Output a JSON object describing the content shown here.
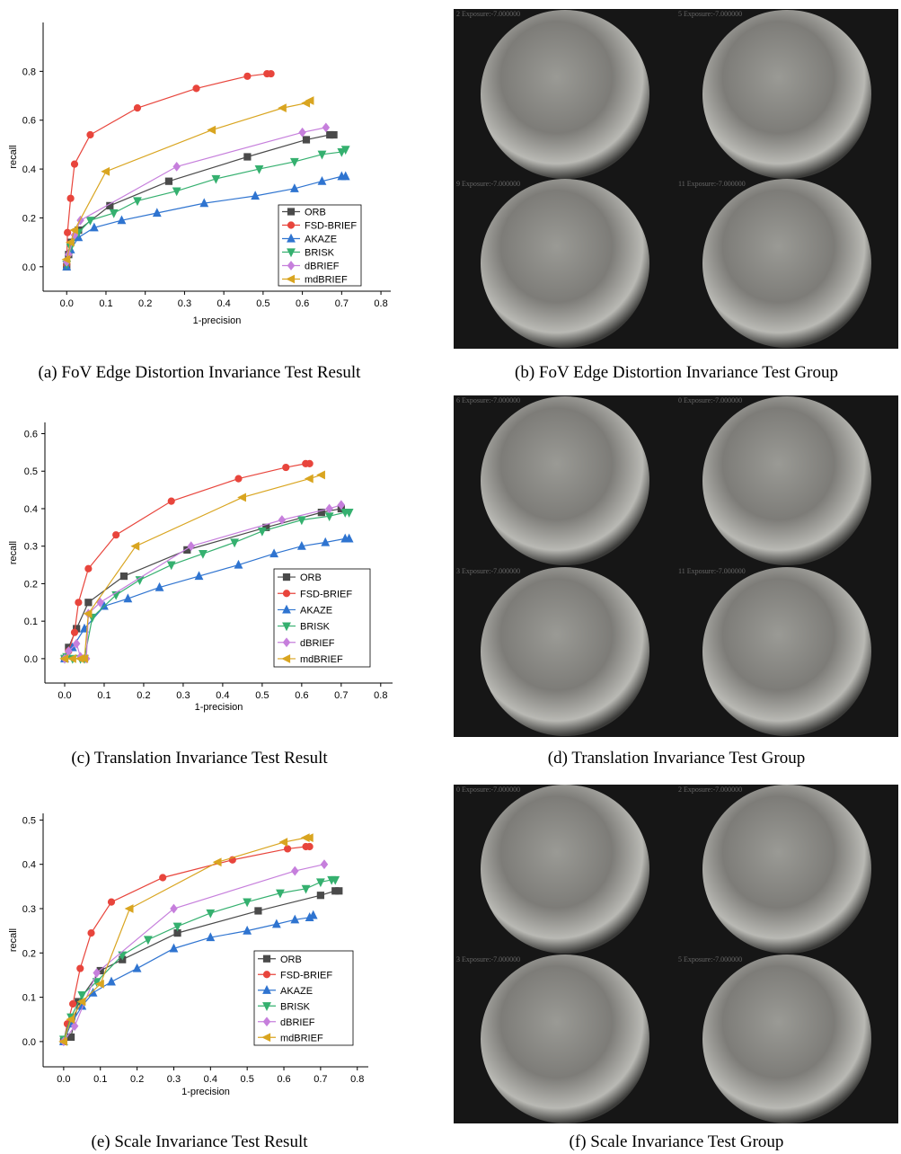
{
  "chart_data": [
    {
      "type": "line",
      "caption": "(a) FoV Edge Distortion Invariance Test Result",
      "xlabel": "1-precision",
      "ylabel": "recall",
      "xlim": [
        -0.06,
        0.825
      ],
      "ylim": [
        -0.1,
        1.0
      ],
      "xticks": [
        {
          "value": 0,
          "label": "0.0"
        },
        0.1,
        0.2,
        0.3,
        0.4,
        0.5,
        0.6,
        0.7,
        0.8
      ],
      "yticks": [
        {
          "value": 0,
          "label": "0.0"
        },
        0.2,
        0.4,
        0.6,
        0.8
      ],
      "series": [
        {
          "name": "ORB",
          "color": "#4a4a4a",
          "marker": "square",
          "x": [
            0,
            0.005,
            0.01,
            0.03,
            0.11,
            0.26,
            0.46,
            0.61,
            0.67,
            0.68
          ],
          "values": [
            0,
            0.05,
            0.1,
            0.15,
            0.25,
            0.35,
            0.45,
            0.52,
            0.54,
            0.54
          ]
        },
        {
          "name": "FSD-BRIEF",
          "color": "#e8453c",
          "marker": "circle",
          "x": [
            0,
            0.002,
            0.01,
            0.02,
            0.06,
            0.18,
            0.33,
            0.46,
            0.51,
            0.52
          ],
          "values": [
            0.01,
            0.14,
            0.28,
            0.42,
            0.54,
            0.65,
            0.73,
            0.78,
            0.79,
            0.79
          ]
        },
        {
          "name": "AKAZE",
          "color": "#2f74d0",
          "marker": "tri-up",
          "x": [
            0,
            0.01,
            0.03,
            0.07,
            0.14,
            0.23,
            0.35,
            0.48,
            0.58,
            0.65,
            0.7,
            0.71
          ],
          "values": [
            0,
            0.07,
            0.12,
            0.16,
            0.19,
            0.22,
            0.26,
            0.29,
            0.32,
            0.35,
            0.37,
            0.37
          ]
        },
        {
          "name": "BRISK",
          "color": "#35b06f",
          "marker": "tri-down",
          "x": [
            0,
            0.01,
            0.03,
            0.06,
            0.12,
            0.18,
            0.28,
            0.38,
            0.49,
            0.58,
            0.65,
            0.7,
            0.71
          ],
          "values": [
            0.01,
            0.08,
            0.14,
            0.19,
            0.22,
            0.27,
            0.31,
            0.36,
            0.4,
            0.43,
            0.46,
            0.47,
            0.48
          ]
        },
        {
          "name": "dBRIEF",
          "color": "#c67fdc",
          "marker": "diamond",
          "x": [
            0,
            0.005,
            0.02,
            0.035,
            0.28,
            0.6,
            0.66
          ],
          "values": [
            0.02,
            0.05,
            0.13,
            0.19,
            0.41,
            0.55,
            0.57
          ]
        },
        {
          "name": "mdBRIEF",
          "color": "#d9a520",
          "marker": "tri-left",
          "x": [
            0,
            0.01,
            0.02,
            0.1,
            0.37,
            0.55,
            0.61,
            0.62
          ],
          "values": [
            0.03,
            0.1,
            0.15,
            0.39,
            0.56,
            0.65,
            0.67,
            0.68
          ]
        }
      ]
    },
    {
      "type": "line",
      "caption": "(c) Translation Invariance Test Result",
      "xlabel": "1-precision",
      "ylabel": "recall",
      "xlim": [
        -0.05,
        0.83
      ],
      "ylim": [
        -0.065,
        0.63
      ],
      "xticks": [
        {
          "value": 0,
          "label": "0.0"
        },
        0.1,
        0.2,
        0.3,
        0.4,
        0.5,
        0.6,
        0.7,
        0.8
      ],
      "yticks": [
        {
          "value": 0,
          "label": "0.0"
        },
        0.1,
        0.2,
        0.3,
        0.4,
        0.5,
        0.6
      ],
      "series": [
        {
          "name": "ORB",
          "color": "#4a4a4a",
          "marker": "square",
          "x": [
            0,
            0.01,
            0.03,
            0.06,
            0.15,
            0.31,
            0.51,
            0.65,
            0.7
          ],
          "values": [
            0,
            0.03,
            0.08,
            0.15,
            0.22,
            0.29,
            0.35,
            0.39,
            0.4
          ]
        },
        {
          "name": "FSD-BRIEF",
          "color": "#e8453c",
          "marker": "circle",
          "x": [
            0,
            0.01,
            0.025,
            0.035,
            0.06,
            0.13,
            0.27,
            0.44,
            0.56,
            0.61,
            0.62
          ],
          "values": [
            0,
            0.02,
            0.07,
            0.15,
            0.24,
            0.33,
            0.42,
            0.48,
            0.51,
            0.52,
            0.52
          ]
        },
        {
          "name": "AKAZE",
          "color": "#2f74d0",
          "marker": "tri-up",
          "x": [
            0,
            0.02,
            0.05,
            0.1,
            0.16,
            0.24,
            0.34,
            0.44,
            0.53,
            0.6,
            0.66,
            0.71,
            0.72
          ],
          "values": [
            0,
            0.03,
            0.08,
            0.14,
            0.16,
            0.19,
            0.22,
            0.25,
            0.28,
            0.3,
            0.31,
            0.32,
            0.32
          ]
        },
        {
          "name": "BRISK",
          "color": "#35b06f",
          "marker": "tri-down",
          "x": [
            0,
            0.005,
            0.02,
            0.04,
            0.05,
            0.07,
            0.13,
            0.19,
            0.27,
            0.35,
            0.43,
            0.5,
            0.6,
            0.67,
            0.71,
            0.72
          ],
          "values": [
            0,
            0.005,
            0,
            0,
            0,
            0.11,
            0.17,
            0.21,
            0.25,
            0.28,
            0.31,
            0.34,
            0.37,
            0.38,
            0.39,
            0.39
          ]
        },
        {
          "name": "dBRIEF",
          "color": "#c67fdc",
          "marker": "diamond",
          "x": [
            0,
            0.01,
            0.03,
            0.04,
            0.055,
            0.06,
            0.09,
            0.32,
            0.55,
            0.67,
            0.7
          ],
          "values": [
            0,
            0.02,
            0.04,
            0.005,
            0,
            0.12,
            0.15,
            0.3,
            0.37,
            0.4,
            0.41
          ]
        },
        {
          "name": "mdBRIEF",
          "color": "#d9a520",
          "marker": "tri-left",
          "x": [
            0,
            0.02,
            0.04,
            0.05,
            0.06,
            0.18,
            0.45,
            0.62,
            0.65
          ],
          "values": [
            0,
            0,
            0,
            0,
            0.12,
            0.3,
            0.43,
            0.48,
            0.49
          ]
        }
      ]
    },
    {
      "type": "line",
      "caption": "(e) Scale Invariance Test Result",
      "xlabel": "1-precision",
      "ylabel": "recall",
      "xlim": [
        -0.056,
        0.83
      ],
      "ylim": [
        -0.057,
        0.515
      ],
      "xticks": [
        {
          "value": 0,
          "label": "0.0"
        },
        0.1,
        0.2,
        0.3,
        0.4,
        0.5,
        0.6,
        0.7,
        0.8
      ],
      "yticks": [
        {
          "value": 0,
          "label": "0.0"
        },
        0.1,
        0.2,
        0.3,
        0.4,
        0.5
      ],
      "series": [
        {
          "name": "ORB",
          "color": "#4a4a4a",
          "marker": "square",
          "x": [
            0,
            0.02,
            0.04,
            0.1,
            0.16,
            0.31,
            0.53,
            0.7,
            0.74,
            0.75
          ],
          "values": [
            0,
            0.01,
            0.09,
            0.16,
            0.185,
            0.245,
            0.295,
            0.33,
            0.34,
            0.34
          ]
        },
        {
          "name": "FSD-BRIEF",
          "color": "#e8453c",
          "marker": "circle",
          "x": [
            0,
            0.01,
            0.025,
            0.045,
            0.075,
            0.13,
            0.27,
            0.46,
            0.61,
            0.66,
            0.67
          ],
          "values": [
            0,
            0.04,
            0.085,
            0.165,
            0.245,
            0.315,
            0.37,
            0.41,
            0.435,
            0.44,
            0.44
          ]
        },
        {
          "name": "AKAZE",
          "color": "#2f74d0",
          "marker": "tri-up",
          "x": [
            0,
            0.02,
            0.05,
            0.08,
            0.13,
            0.2,
            0.3,
            0.4,
            0.5,
            0.58,
            0.63,
            0.67,
            0.68
          ],
          "values": [
            0,
            0.04,
            0.08,
            0.11,
            0.135,
            0.165,
            0.21,
            0.235,
            0.25,
            0.265,
            0.275,
            0.28,
            0.285
          ]
        },
        {
          "name": "BRISK",
          "color": "#35b06f",
          "marker": "tri-down",
          "x": [
            0,
            0.02,
            0.05,
            0.09,
            0.16,
            0.23,
            0.31,
            0.4,
            0.5,
            0.59,
            0.66,
            0.7,
            0.73,
            0.74
          ],
          "values": [
            0.005,
            0.055,
            0.105,
            0.135,
            0.195,
            0.23,
            0.26,
            0.29,
            0.315,
            0.335,
            0.345,
            0.36,
            0.365,
            0.365
          ]
        },
        {
          "name": "dBRIEF",
          "color": "#c67fdc",
          "marker": "diamond",
          "x": [
            0,
            0.03,
            0.09,
            0.3,
            0.63,
            0.71
          ],
          "values": [
            0,
            0.035,
            0.155,
            0.3,
            0.385,
            0.4
          ]
        },
        {
          "name": "mdBRIEF",
          "color": "#d9a520",
          "marker": "tri-left",
          "x": [
            0,
            0.02,
            0.05,
            0.1,
            0.18,
            0.42,
            0.6,
            0.66,
            0.67
          ],
          "values": [
            0,
            0.05,
            0.09,
            0.13,
            0.3,
            0.405,
            0.45,
            0.46,
            0.46
          ]
        }
      ]
    }
  ],
  "photo_panels": [
    {
      "caption": "(b) FoV Edge Distortion Invariance Test Group",
      "labels": [
        "2 Exposure:-7.000000",
        "5 Exposure:-7.000000",
        "9 Exposure:-7.000000",
        "11 Exposure:-7.000000"
      ]
    },
    {
      "caption": "(d) Translation Invariance Test Group",
      "labels": [
        "6 Exposure:-7.000000",
        "0 Exposure:-7.000000",
        "3 Exposure:-7.000000",
        "11 Exposure:-7.000000"
      ]
    },
    {
      "caption": "(f) Scale Invariance Test Group",
      "labels": [
        "0 Exposure:-7.000000",
        "2 Exposure:-7.000000",
        "3 Exposure:-7.000000",
        "5 Exposure:-7.000000"
      ]
    }
  ]
}
